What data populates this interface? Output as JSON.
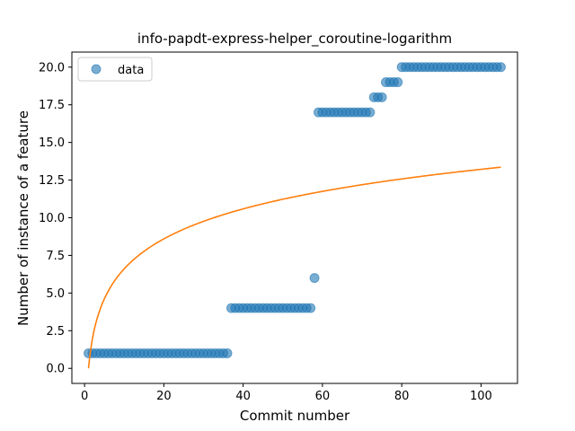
{
  "chart_data": {
    "type": "scatter",
    "title": "info-papdt-express-helper_coroutine-logarithm",
    "xlabel": "Commit number",
    "ylabel": "Number of instance of a feature",
    "xlim": [
      -3.2,
      109.2
    ],
    "ylim": [
      -1.0,
      21.0
    ],
    "x_ticks": [
      0,
      20,
      40,
      60,
      80,
      100
    ],
    "x_tick_labels": [
      "0",
      "20",
      "40",
      "60",
      "80",
      "100"
    ],
    "y_ticks": [
      0,
      2.5,
      5,
      7.5,
      10,
      12.5,
      15,
      17.5,
      20
    ],
    "y_tick_labels": [
      "0.0",
      "2.5",
      "5.0",
      "7.5",
      "10.0",
      "12.5",
      "15.0",
      "17.5",
      "20.0"
    ],
    "grid": false,
    "legend": {
      "position": "top-left",
      "entries": [
        "data"
      ]
    },
    "colors": {
      "points": "#1f77b4",
      "fit": "#ff7f0e"
    },
    "series": [
      {
        "name": "data",
        "kind": "scatter",
        "points": [
          [
            1,
            1
          ],
          [
            2,
            1
          ],
          [
            3,
            1
          ],
          [
            4,
            1
          ],
          [
            5,
            1
          ],
          [
            6,
            1
          ],
          [
            7,
            1
          ],
          [
            8,
            1
          ],
          [
            9,
            1
          ],
          [
            10,
            1
          ],
          [
            11,
            1
          ],
          [
            12,
            1
          ],
          [
            13,
            1
          ],
          [
            14,
            1
          ],
          [
            15,
            1
          ],
          [
            16,
            1
          ],
          [
            17,
            1
          ],
          [
            18,
            1
          ],
          [
            19,
            1
          ],
          [
            20,
            1
          ],
          [
            21,
            1
          ],
          [
            22,
            1
          ],
          [
            23,
            1
          ],
          [
            24,
            1
          ],
          [
            25,
            1
          ],
          [
            26,
            1
          ],
          [
            27,
            1
          ],
          [
            28,
            1
          ],
          [
            29,
            1
          ],
          [
            30,
            1
          ],
          [
            31,
            1
          ],
          [
            32,
            1
          ],
          [
            33,
            1
          ],
          [
            34,
            1
          ],
          [
            35,
            1
          ],
          [
            36,
            1
          ],
          [
            37,
            4
          ],
          [
            38,
            4
          ],
          [
            39,
            4
          ],
          [
            40,
            4
          ],
          [
            41,
            4
          ],
          [
            42,
            4
          ],
          [
            43,
            4
          ],
          [
            44,
            4
          ],
          [
            45,
            4
          ],
          [
            46,
            4
          ],
          [
            47,
            4
          ],
          [
            48,
            4
          ],
          [
            49,
            4
          ],
          [
            50,
            4
          ],
          [
            51,
            4
          ],
          [
            52,
            4
          ],
          [
            53,
            4
          ],
          [
            54,
            4
          ],
          [
            55,
            4
          ],
          [
            56,
            4
          ],
          [
            57,
            4
          ],
          [
            58,
            6
          ],
          [
            59,
            17
          ],
          [
            60,
            17
          ],
          [
            61,
            17
          ],
          [
            62,
            17
          ],
          [
            63,
            17
          ],
          [
            64,
            17
          ],
          [
            65,
            17
          ],
          [
            66,
            17
          ],
          [
            67,
            17
          ],
          [
            68,
            17
          ],
          [
            69,
            17
          ],
          [
            70,
            17
          ],
          [
            71,
            17
          ],
          [
            72,
            17
          ],
          [
            73,
            18
          ],
          [
            74,
            18
          ],
          [
            75,
            18
          ],
          [
            76,
            19
          ],
          [
            77,
            19
          ],
          [
            78,
            19
          ],
          [
            79,
            19
          ],
          [
            80,
            20
          ],
          [
            81,
            20
          ],
          [
            82,
            20
          ],
          [
            83,
            20
          ],
          [
            84,
            20
          ],
          [
            85,
            20
          ],
          [
            86,
            20
          ],
          [
            87,
            20
          ],
          [
            88,
            20
          ],
          [
            89,
            20
          ],
          [
            90,
            20
          ],
          [
            91,
            20
          ],
          [
            92,
            20
          ],
          [
            93,
            20
          ],
          [
            94,
            20
          ],
          [
            95,
            20
          ],
          [
            96,
            20
          ],
          [
            97,
            20
          ],
          [
            98,
            20
          ],
          [
            99,
            20
          ],
          [
            100,
            20
          ],
          [
            101,
            20
          ],
          [
            102,
            20
          ],
          [
            103,
            20
          ],
          [
            104,
            20
          ],
          [
            105,
            20
          ]
        ]
      },
      {
        "kind": "line",
        "function": "y = 2.87 * ln(x)",
        "x_range": [
          1,
          105
        ]
      }
    ]
  }
}
